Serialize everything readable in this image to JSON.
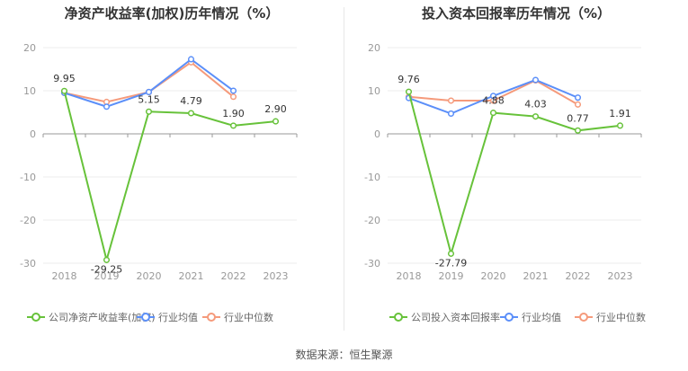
{
  "source_label": "数据来源：恒生聚源",
  "colors": {
    "company": "#67c23a",
    "mean": "#5b8ff9",
    "median": "#f59a7b",
    "grid": "#eeeeee",
    "axis": "#999999",
    "label": "#333333",
    "tick": "#999999"
  },
  "chart_data": [
    {
      "type": "line",
      "title": "净资产收益率(加权)历年情况（%）",
      "categories": [
        "2018",
        "2019",
        "2020",
        "2021",
        "2022",
        "2023"
      ],
      "ylim": [
        -30,
        20
      ],
      "yticks": [
        20,
        10,
        0,
        -10,
        -20,
        -30
      ],
      "grid": true,
      "legend_position": "bottom",
      "series": [
        {
          "name": "公司净资产收益率(加权)",
          "color": "#67c23a",
          "values": [
            9.95,
            -29.25,
            5.15,
            4.79,
            1.9,
            2.9
          ],
          "labels": [
            "9.95",
            "-29.25",
            "5.15",
            "4.79",
            "1.90",
            "2.90"
          ]
        },
        {
          "name": "行业均值",
          "color": "#5b8ff9",
          "values": [
            9.5,
            6.3,
            9.7,
            17.3,
            10.0,
            null
          ]
        },
        {
          "name": "行业中位数",
          "color": "#f59a7b",
          "values": [
            9.5,
            7.4,
            9.7,
            16.6,
            8.6,
            null
          ]
        }
      ]
    },
    {
      "type": "line",
      "title": "投入资本回报率历年情况（%）",
      "categories": [
        "2018",
        "2019",
        "2020",
        "2021",
        "2022",
        "2023"
      ],
      "ylim": [
        -30,
        20
      ],
      "yticks": [
        20,
        10,
        0,
        -10,
        -20,
        -30
      ],
      "grid": true,
      "legend_position": "bottom",
      "series": [
        {
          "name": "公司投入资本回报率",
          "color": "#67c23a",
          "values": [
            9.76,
            -27.79,
            4.88,
            4.03,
            0.77,
            1.91
          ],
          "labels": [
            "9.76",
            "-27.79",
            "4.88",
            "4.03",
            "0.77",
            "1.91"
          ]
        },
        {
          "name": "行业均值",
          "color": "#5b8ff9",
          "values": [
            8.3,
            4.7,
            8.8,
            12.5,
            8.4,
            null
          ]
        },
        {
          "name": "行业中位数",
          "color": "#f59a7b",
          "values": [
            8.6,
            7.7,
            7.7,
            12.4,
            6.8,
            null
          ]
        }
      ]
    }
  ]
}
